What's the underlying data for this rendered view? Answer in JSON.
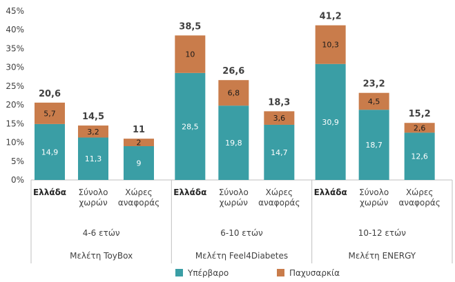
{
  "chart_data": {
    "type": "bar",
    "stacked": true,
    "ylim": [
      0,
      45
    ],
    "yticks": [
      "0%",
      "5%",
      "10%",
      "15%",
      "20%",
      "25%",
      "30%",
      "35%",
      "40%",
      "45%"
    ],
    "colors": {
      "overweight": "#3a9ea5",
      "obesity": "#c97c4b"
    },
    "legend": [
      "Υπέρβαρο",
      "Παχυσαρκία"
    ],
    "studies": [
      {
        "name": "Μελέτη ToyBox",
        "age_group": "4-6 ετών",
        "bars": [
          {
            "label": [
              "Ελλάδα"
            ],
            "bold": true,
            "overweight": 14.9,
            "obesity": 5.7,
            "total": 20.6
          },
          {
            "label": [
              "Σύνολο",
              "χωρών"
            ],
            "bold": false,
            "overweight": 11.3,
            "obesity": 3.2,
            "total": 14.5
          },
          {
            "label": [
              "Χώρες",
              "αναφοράς"
            ],
            "bold": false,
            "overweight": 9,
            "obesity": 2,
            "total": 11
          }
        ]
      },
      {
        "name": "Μελέτη Feel4Diabetes",
        "age_group": "6-10 ετών",
        "bars": [
          {
            "label": [
              "Ελλάδα"
            ],
            "bold": true,
            "overweight": 28.5,
            "obesity": 10,
            "total": 38.5
          },
          {
            "label": [
              "Σύνολο",
              "χωρών"
            ],
            "bold": false,
            "overweight": 19.8,
            "obesity": 6.8,
            "total": 26.6
          },
          {
            "label": [
              "Χώρες",
              "αναφοράς"
            ],
            "bold": false,
            "overweight": 14.7,
            "obesity": 3.6,
            "total": 18.3
          }
        ]
      },
      {
        "name": "Μελέτη ENERGY",
        "age_group": "10-12 ετών",
        "bars": [
          {
            "label": [
              "Ελλάδα"
            ],
            "bold": true,
            "overweight": 30.9,
            "obesity": 10.3,
            "total": 41.2
          },
          {
            "label": [
              "Σύνολο",
              "χωρών"
            ],
            "bold": false,
            "overweight": 18.7,
            "obesity": 4.5,
            "total": 23.2
          },
          {
            "label": [
              "Χώρες",
              "αναφοράς"
            ],
            "bold": false,
            "overweight": 12.6,
            "obesity": 2.6,
            "total": 15.2
          }
        ]
      }
    ]
  }
}
